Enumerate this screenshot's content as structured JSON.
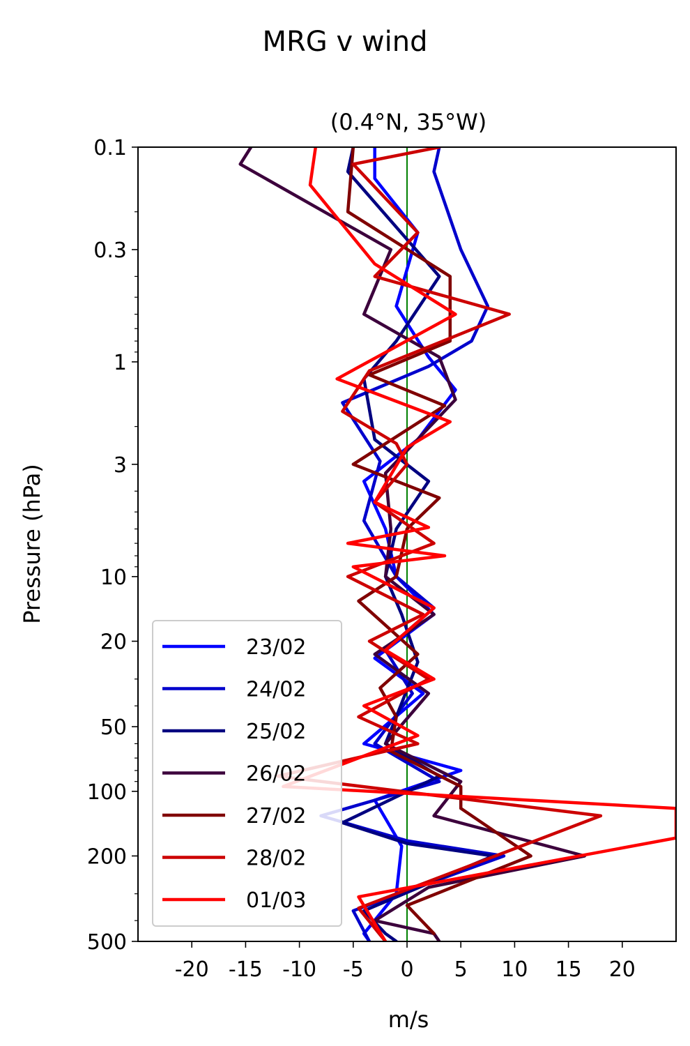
{
  "chart_data": {
    "type": "line",
    "suptitle": "MRG v wind",
    "title": "(0.4°N, 35°W)",
    "xlabel": "m/s",
    "ylabel": "Pressure (hPa)",
    "xlim": [
      -25,
      25
    ],
    "ylim": [
      500,
      0.1
    ],
    "yscale": "log",
    "grid": false,
    "legend_position": "lower-left",
    "x_ticks": [
      -20,
      -15,
      -10,
      -5,
      0,
      5,
      10,
      15,
      20
    ],
    "x_tick_labels": [
      "-20",
      "-15",
      "-10",
      "-5",
      "0",
      "5",
      "10",
      "15",
      "20"
    ],
    "y_ticks": [
      0.1,
      0.3,
      1,
      3,
      10,
      20,
      50,
      100,
      200,
      500
    ],
    "y_tick_labels": [
      "0.1",
      "0.3",
      "1",
      "3",
      "10",
      "20",
      "50",
      "100",
      "200",
      "500"
    ],
    "zero_line": {
      "x": 0,
      "color": "#008000"
    },
    "series": [
      {
        "name": "23/02",
        "color": "#0000ff",
        "points": [
          [
            -3,
            0.1
          ],
          [
            -3,
            0.14
          ],
          [
            1,
            0.25
          ],
          [
            -1,
            0.55
          ],
          [
            2,
            0.95
          ],
          [
            4.5,
            1.35
          ],
          [
            1,
            2.3
          ],
          [
            -4,
            3.6
          ],
          [
            -2,
            6
          ],
          [
            -1,
            10
          ],
          [
            2.5,
            15
          ],
          [
            -3,
            24
          ],
          [
            1.5,
            35
          ],
          [
            -4,
            60
          ],
          [
            5,
            80
          ],
          [
            -3,
            110
          ],
          [
            -0.5,
            180
          ],
          [
            -1,
            300
          ],
          [
            -4,
            460
          ],
          [
            -3.5,
            500
          ]
        ]
      },
      {
        "name": "24/02",
        "color": "#0000cc",
        "points": [
          [
            3,
            0.1
          ],
          [
            2.5,
            0.13
          ],
          [
            5,
            0.3
          ],
          [
            7.5,
            0.55
          ],
          [
            6,
            0.8
          ],
          [
            2,
            1.05
          ],
          [
            -6,
            1.55
          ],
          [
            -2.5,
            2.9
          ],
          [
            -4,
            5.5
          ],
          [
            -1,
            10
          ],
          [
            2.5,
            14
          ],
          [
            -2,
            22
          ],
          [
            0.5,
            35
          ],
          [
            -3,
            60
          ],
          [
            3,
            90
          ],
          [
            -8,
            130
          ],
          [
            0,
            170
          ],
          [
            9,
            200
          ],
          [
            -5,
            360
          ],
          [
            -3.5,
            500
          ]
        ]
      },
      {
        "name": "25/02",
        "color": "#000080",
        "points": [
          [
            -5,
            0.1
          ],
          [
            -5.5,
            0.13
          ],
          [
            3,
            0.4
          ],
          [
            -1,
            0.8
          ],
          [
            -4,
            1.2
          ],
          [
            -3,
            2.3
          ],
          [
            2,
            3.6
          ],
          [
            -1,
            6
          ],
          [
            -2,
            10
          ],
          [
            -0.5,
            15
          ],
          [
            1,
            25
          ],
          [
            -1,
            45
          ],
          [
            -2,
            60
          ],
          [
            3,
            85
          ],
          [
            -6,
            140
          ],
          [
            0,
            175
          ],
          [
            8,
            200
          ],
          [
            -4,
            360
          ],
          [
            -2,
            460
          ],
          [
            -1,
            500
          ]
        ]
      },
      {
        "name": "26/02",
        "color": "#3c003c",
        "points": [
          [
            -14.5,
            0.1
          ],
          [
            -15.5,
            0.12
          ],
          [
            -1.5,
            0.3
          ],
          [
            -4,
            0.6
          ],
          [
            3,
            0.95
          ],
          [
            4.5,
            1.5
          ],
          [
            -2,
            3.3
          ],
          [
            -1.5,
            6
          ],
          [
            -2,
            10
          ],
          [
            2.5,
            15
          ],
          [
            -3,
            23
          ],
          [
            2,
            35
          ],
          [
            -2,
            60
          ],
          [
            5,
            90
          ],
          [
            2.5,
            130
          ],
          [
            16.5,
            200
          ],
          [
            2,
            280
          ],
          [
            -3,
            400
          ],
          [
            2.5,
            460
          ],
          [
            3,
            500
          ]
        ]
      },
      {
        "name": "27/02",
        "color": "#800000",
        "points": [
          [
            -5,
            0.1
          ],
          [
            -5.5,
            0.2
          ],
          [
            4,
            0.4
          ],
          [
            4,
            0.8
          ],
          [
            -3.5,
            1.15
          ],
          [
            3.5,
            1.6
          ],
          [
            -5,
            3
          ],
          [
            3,
            4.3
          ],
          [
            0,
            6
          ],
          [
            -1,
            10
          ],
          [
            -4.5,
            13
          ],
          [
            1,
            23
          ],
          [
            -2.5,
            33
          ],
          [
            -1,
            45
          ],
          [
            -1.5,
            65
          ],
          [
            5,
            95
          ],
          [
            5,
            120
          ],
          [
            11.5,
            200
          ],
          [
            0,
            340
          ],
          [
            2.5,
            460
          ]
        ]
      },
      {
        "name": "28/02",
        "color": "#cc0000",
        "points": [
          [
            3,
            0.1
          ],
          [
            -5,
            0.12
          ],
          [
            1,
            0.25
          ],
          [
            -3,
            0.4
          ],
          [
            9.5,
            0.6
          ],
          [
            -3.5,
            1.1
          ],
          [
            -6,
            1.7
          ],
          [
            -1,
            2.4
          ],
          [
            0,
            3
          ],
          [
            -3,
            4.5
          ],
          [
            2.5,
            7
          ],
          [
            -5.5,
            10
          ],
          [
            1.5,
            15
          ],
          [
            -3.5,
            20
          ],
          [
            2,
            30
          ],
          [
            -4.5,
            45
          ],
          [
            1,
            60
          ],
          [
            -12,
            85
          ],
          [
            18,
            130
          ],
          [
            -4.5,
            350
          ],
          [
            -2,
            500
          ]
        ]
      },
      {
        "name": "01/03",
        "color": "#ff0000",
        "points": [
          [
            -8.5,
            0.1
          ],
          [
            -9,
            0.15
          ],
          [
            -3,
            0.35
          ],
          [
            4.5,
            0.6
          ],
          [
            -6.5,
            1.2
          ],
          [
            4,
            1.9
          ],
          [
            0,
            2.5
          ],
          [
            -3,
            4.5
          ],
          [
            2,
            5.9
          ],
          [
            -5.5,
            7
          ],
          [
            3.5,
            8
          ],
          [
            -5,
            9
          ],
          [
            2.5,
            14
          ],
          [
            -2,
            22
          ],
          [
            2.5,
            30
          ],
          [
            -4,
            40
          ],
          [
            1,
            55
          ],
          [
            -11.5,
            95
          ],
          [
            25,
            120
          ],
          [
            25,
            165
          ],
          [
            -4.5,
            310
          ],
          [
            -2,
            500
          ]
        ]
      }
    ]
  }
}
